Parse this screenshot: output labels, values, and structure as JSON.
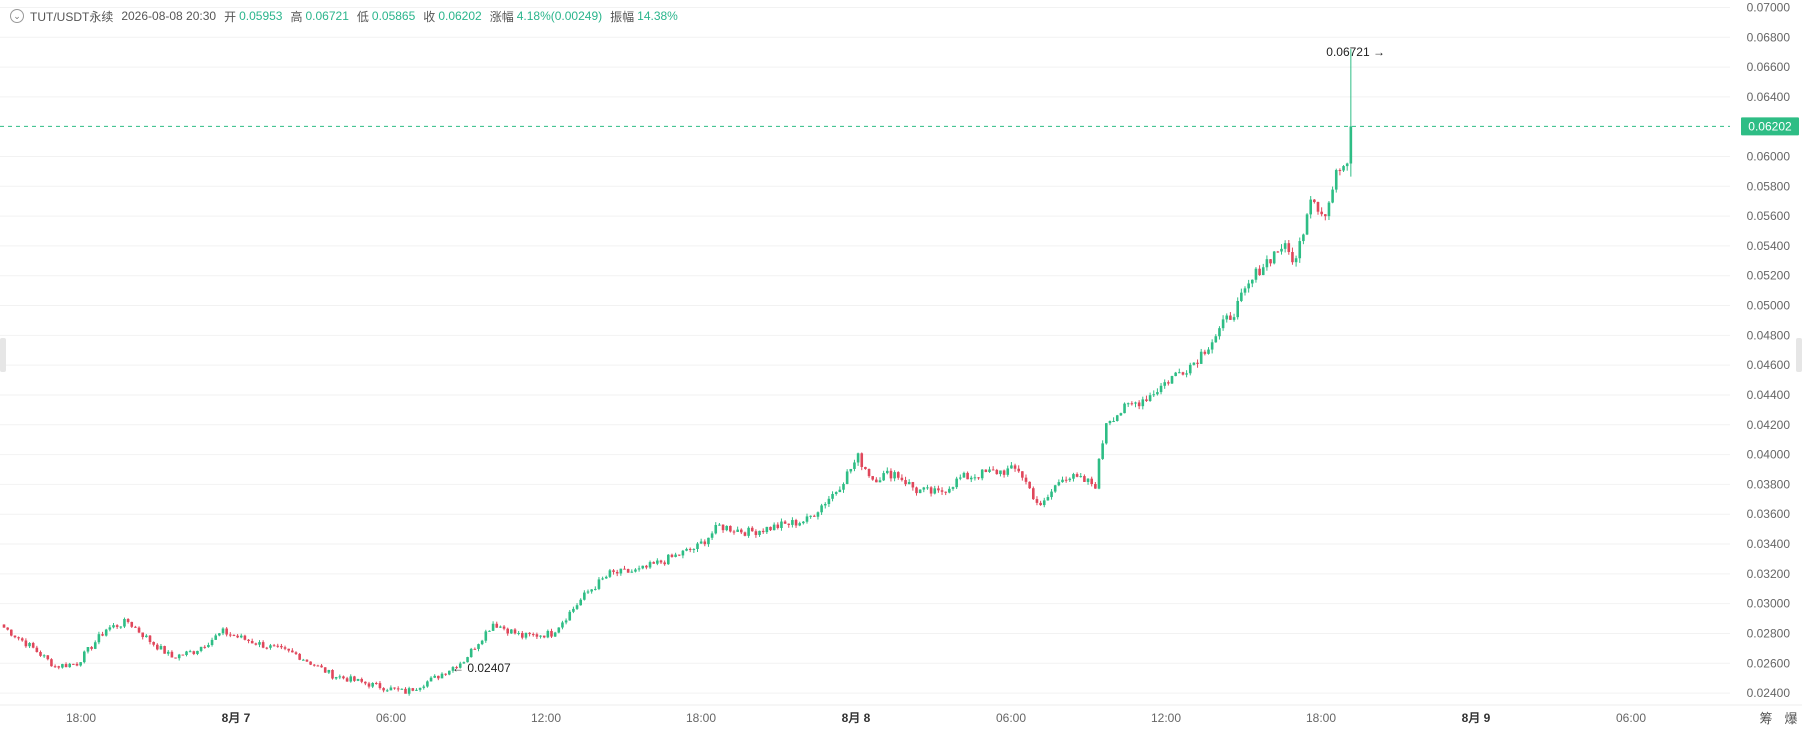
{
  "header": {
    "collapse_icon": "chevron-down-icon",
    "symbol": "TUT/USDT永续",
    "time": "2026-08-08 20:30",
    "open_label": "开",
    "open": "0.05953",
    "high_label": "高",
    "high": "0.06721",
    "low_label": "低",
    "low": "0.05865",
    "close_label": "收",
    "close": "0.06202",
    "change_label": "涨幅",
    "change": "4.18%(0.00249)",
    "amplitude_label": "振幅",
    "amplitude": "14.38%"
  },
  "price_axis": {
    "ticks": [
      "0.07000",
      "0.06800",
      "0.06600",
      "0.06400",
      "0.06000",
      "0.05800",
      "0.05600",
      "0.05400",
      "0.05200",
      "0.05000",
      "0.04800",
      "0.04600",
      "0.04400",
      "0.04200",
      "0.04000",
      "0.03800",
      "0.03600",
      "0.03400",
      "0.03200",
      "0.03000",
      "0.02800",
      "0.02600",
      "0.02400"
    ],
    "current_price_label": "0.06202"
  },
  "time_axis": {
    "ticks": [
      "18:00",
      "8月 7",
      "06:00",
      "12:00",
      "18:00",
      "8月 8",
      "06:00",
      "12:00",
      "18:00",
      "8月 9",
      "06:00"
    ],
    "corner_buttons": [
      "筹",
      "爆"
    ]
  },
  "annotations": {
    "high_marker": "0.06721 →",
    "low_marker": "← 0.02407"
  },
  "chart_data": {
    "type": "candlestick",
    "y_range": [
      0.0232,
      0.0705
    ],
    "current_price": 0.06202,
    "recent_high": 0.06721,
    "recent_low": 0.02407,
    "colors": {
      "up": "#2ebd85",
      "down": "#e0475b",
      "price_line": "#2ebd85",
      "grid": "#f2f2f2"
    },
    "anchor_closes": [
      [
        0,
        0.0284
      ],
      [
        8,
        0.027
      ],
      [
        14,
        0.0258
      ],
      [
        20,
        0.026
      ],
      [
        28,
        0.0283
      ],
      [
        34,
        0.0288
      ],
      [
        40,
        0.0275
      ],
      [
        46,
        0.0264
      ],
      [
        52,
        0.0268
      ],
      [
        60,
        0.0281
      ],
      [
        66,
        0.0276
      ],
      [
        74,
        0.027
      ],
      [
        80,
        0.0266
      ],
      [
        90,
        0.0252
      ],
      [
        100,
        0.0246
      ],
      [
        110,
        0.02407
      ],
      [
        118,
        0.025
      ],
      [
        126,
        0.0262
      ],
      [
        134,
        0.0287
      ],
      [
        142,
        0.0278
      ],
      [
        150,
        0.028
      ],
      [
        160,
        0.0308
      ],
      [
        166,
        0.032
      ],
      [
        174,
        0.0322
      ],
      [
        182,
        0.033
      ],
      [
        190,
        0.0338
      ],
      [
        196,
        0.0352
      ],
      [
        204,
        0.0348
      ],
      [
        212,
        0.0352
      ],
      [
        220,
        0.0356
      ],
      [
        228,
        0.0376
      ],
      [
        234,
        0.0398
      ],
      [
        238,
        0.0384
      ],
      [
        244,
        0.0388
      ],
      [
        250,
        0.0376
      ],
      [
        256,
        0.0374
      ],
      [
        262,
        0.0384
      ],
      [
        270,
        0.0388
      ],
      [
        278,
        0.039
      ],
      [
        284,
        0.0364
      ],
      [
        290,
        0.0386
      ],
      [
        296,
        0.0382
      ],
      [
        299,
        0.038
      ],
      [
        302,
        0.0423
      ],
      [
        308,
        0.0432
      ],
      [
        314,
        0.044
      ],
      [
        320,
        0.0452
      ],
      [
        326,
        0.0462
      ],
      [
        332,
        0.048
      ],
      [
        338,
        0.05
      ],
      [
        344,
        0.0525
      ],
      [
        350,
        0.054
      ],
      [
        354,
        0.053
      ],
      [
        358,
        0.0575
      ],
      [
        362,
        0.056
      ],
      [
        366,
        0.0595
      ],
      [
        368,
        0.05953
      ],
      [
        369,
        0.06202
      ]
    ]
  }
}
